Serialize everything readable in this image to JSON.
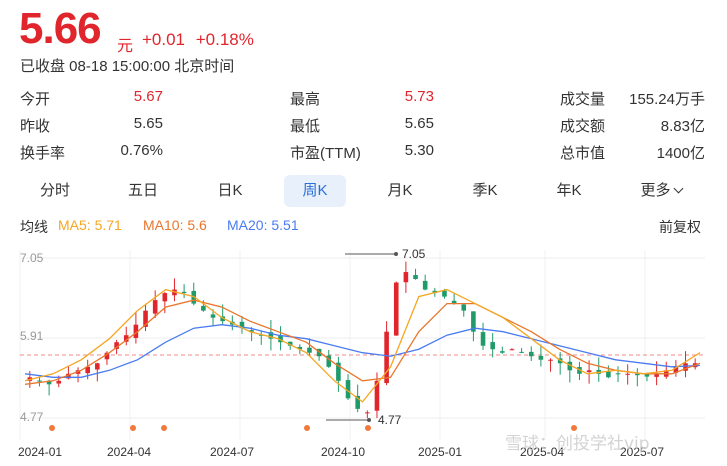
{
  "quote": {
    "price": "5.66",
    "unit": "元",
    "change": "+0.01",
    "change_pct": "+0.18%",
    "status": "已收盘 08-18 15:00:00 北京时间"
  },
  "stats": [
    {
      "label": "今开",
      "value": "5.67",
      "color": "#e0262c"
    },
    {
      "label": "最高",
      "value": "5.73",
      "color": "#e0262c"
    },
    {
      "label": "成交量",
      "value": "155.24万手"
    },
    {
      "label": "昨收",
      "value": "5.65"
    },
    {
      "label": "最低",
      "value": "5.65"
    },
    {
      "label": "成交额",
      "value": "8.83亿"
    },
    {
      "label": "换手率",
      "value": "0.76%"
    },
    {
      "label": "市盈(TTM)",
      "value": "5.30"
    },
    {
      "label": "总市值",
      "value": "1400亿"
    }
  ],
  "tabs": [
    "分时",
    "五日",
    "日K",
    "周K",
    "月K",
    "季K",
    "年K",
    "更多"
  ],
  "active_tab": "周K",
  "legend": {
    "title": "均线",
    "ma5": "MA5: 5.71",
    "ma10": "MA10: 5.6",
    "ma20": "MA20: 5.51",
    "adjust": "前复权"
  },
  "colors": {
    "up": "#e0262c",
    "down": "#1f9b6a",
    "ma5": "#f5a623",
    "ma10": "#e8762b",
    "ma20": "#4a7cf0"
  },
  "chart_data": {
    "type": "candlestick",
    "y_ticks": [
      "7.05",
      "5.91",
      "4.77"
    ],
    "ylim": [
      4.77,
      7.05
    ],
    "x_labels": [
      "2024-01",
      "2024-04",
      "2024-07",
      "2024-10",
      "2025-01",
      "2025-04",
      "2025-07"
    ],
    "annotations": {
      "high": "7.05",
      "low": "4.77"
    },
    "ma5": [
      5.3,
      5.4,
      5.6,
      5.9,
      6.3,
      6.6,
      6.5,
      6.2,
      6.0,
      5.9,
      5.7,
      5.3,
      5.0,
      5.5,
      6.5,
      6.6,
      6.4,
      6.2,
      5.9,
      5.6,
      5.4,
      5.45,
      5.4,
      5.45,
      5.7
    ],
    "ma10": [
      5.25,
      5.3,
      5.45,
      5.7,
      6.0,
      6.35,
      6.45,
      6.35,
      6.15,
      6.0,
      5.85,
      5.55,
      5.3,
      5.35,
      6.0,
      6.4,
      6.4,
      6.2,
      6.0,
      5.75,
      5.55,
      5.45,
      5.4,
      5.4,
      5.55
    ],
    "ma20": [
      5.4,
      5.35,
      5.35,
      5.45,
      5.6,
      5.85,
      6.05,
      6.1,
      6.05,
      5.95,
      5.9,
      5.8,
      5.7,
      5.65,
      5.75,
      5.95,
      6.05,
      6.0,
      5.9,
      5.8,
      5.7,
      5.6,
      5.55,
      5.5,
      5.52
    ]
  },
  "watermark": "雪球：创投学社vip"
}
